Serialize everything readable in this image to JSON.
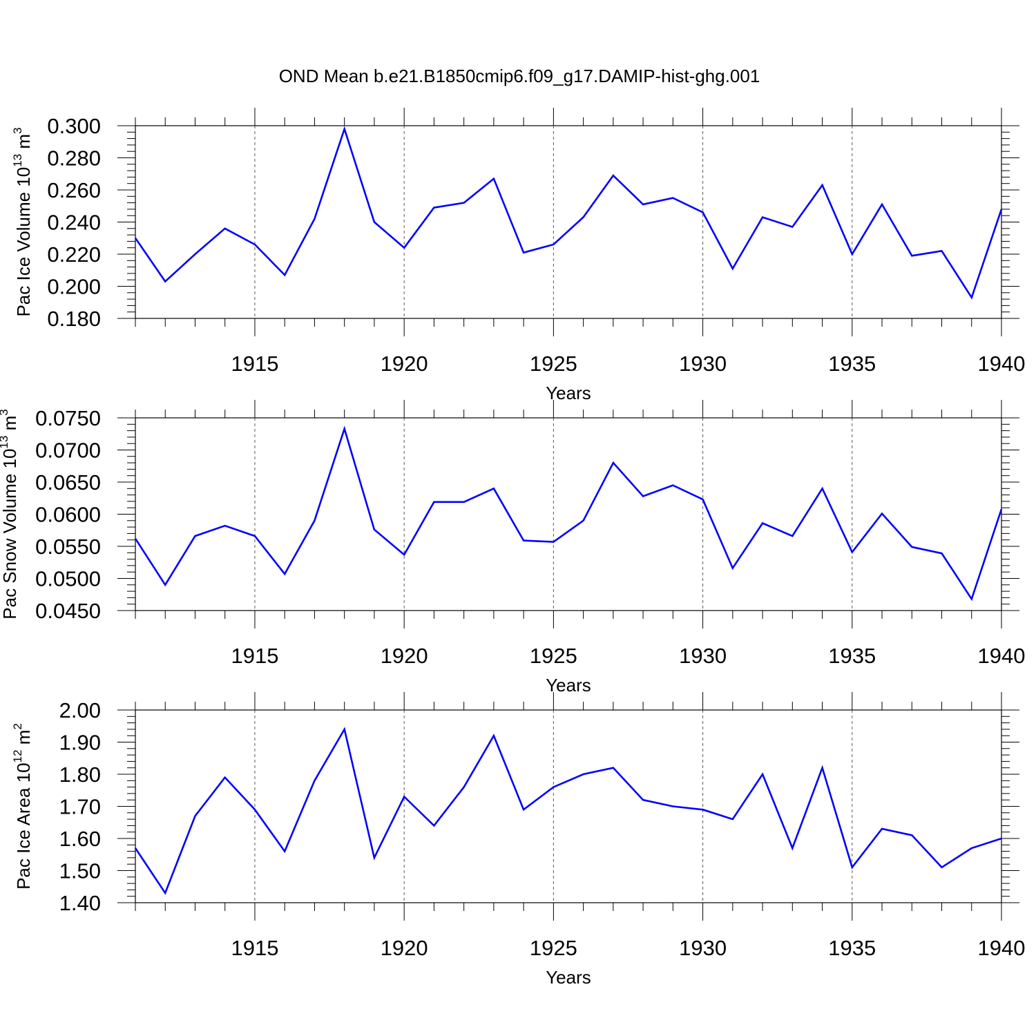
{
  "title": "OND Mean b.e21.B1850cmip6.f09_g17.DAMIP-hist-ghg.001",
  "line_color": "#0000ff",
  "chart_data": [
    {
      "type": "line",
      "ylabel": "Pac Ice Volume 10",
      "ylabel_exp": "13",
      "ylabel_unit": " m",
      "ylabel_unit_exp": "3",
      "xlabel": "Years",
      "xlim": [
        1911,
        1940
      ],
      "ylim": [
        0.18,
        0.3
      ],
      "yticks": [
        0.18,
        0.2,
        0.22,
        0.24,
        0.26,
        0.28,
        0.3
      ],
      "ytick_labels": [
        "0.180",
        "0.200",
        "0.220",
        "0.240",
        "0.260",
        "0.280",
        "0.300"
      ],
      "xticks": [
        1915,
        1920,
        1925,
        1930,
        1935,
        1940
      ],
      "xtick_labels": [
        "1915",
        "1920",
        "1925",
        "1930",
        "1935",
        "1940"
      ],
      "grid": "dashed vertical at major x ticks",
      "x": [
        1911,
        1912,
        1913,
        1914,
        1915,
        1916,
        1917,
        1918,
        1919,
        1920,
        1921,
        1922,
        1923,
        1924,
        1925,
        1926,
        1927,
        1928,
        1929,
        1930,
        1931,
        1932,
        1933,
        1934,
        1935,
        1936,
        1937,
        1938,
        1939,
        1940
      ],
      "values": [
        0.23,
        0.203,
        0.22,
        0.236,
        0.226,
        0.207,
        0.242,
        0.298,
        0.24,
        0.224,
        0.249,
        0.252,
        0.267,
        0.221,
        0.226,
        0.243,
        0.269,
        0.251,
        0.255,
        0.246,
        0.211,
        0.243,
        0.237,
        0.263,
        0.22,
        0.251,
        0.219,
        0.222,
        0.193,
        0.248
      ]
    },
    {
      "type": "line",
      "ylabel": "Pac Snow Volume 10",
      "ylabel_exp": "13",
      "ylabel_unit": " m",
      "ylabel_unit_exp": "3",
      "xlabel": "Years",
      "xlim": [
        1911,
        1940
      ],
      "ylim": [
        0.045,
        0.075
      ],
      "yticks": [
        0.045,
        0.05,
        0.055,
        0.06,
        0.065,
        0.07,
        0.075
      ],
      "ytick_labels": [
        "0.0450",
        "0.0500",
        "0.0550",
        "0.0600",
        "0.0650",
        "0.0700",
        "0.0750"
      ],
      "xticks": [
        1915,
        1920,
        1925,
        1930,
        1935,
        1940
      ],
      "xtick_labels": [
        "1915",
        "1920",
        "1925",
        "1930",
        "1935",
        "1940"
      ],
      "grid": "dashed vertical at major x ticks",
      "x": [
        1911,
        1912,
        1913,
        1914,
        1915,
        1916,
        1917,
        1918,
        1919,
        1920,
        1921,
        1922,
        1923,
        1924,
        1925,
        1926,
        1927,
        1928,
        1929,
        1930,
        1931,
        1932,
        1933,
        1934,
        1935,
        1936,
        1937,
        1938,
        1939,
        1940
      ],
      "values": [
        0.0562,
        0.049,
        0.0566,
        0.0582,
        0.0566,
        0.0507,
        0.059,
        0.0733,
        0.0576,
        0.0537,
        0.0619,
        0.0619,
        0.064,
        0.0559,
        0.0557,
        0.059,
        0.068,
        0.0628,
        0.0645,
        0.0623,
        0.0516,
        0.0586,
        0.0566,
        0.064,
        0.0541,
        0.0601,
        0.0549,
        0.0539,
        0.0468,
        0.0608
      ]
    },
    {
      "type": "line",
      "ylabel": "Pac Ice Area 10",
      "ylabel_exp": "12",
      "ylabel_unit": " m",
      "ylabel_unit_exp": "2",
      "xlabel": "Years",
      "xlim": [
        1911,
        1940
      ],
      "ylim": [
        1.4,
        2.0
      ],
      "yticks": [
        1.4,
        1.5,
        1.6,
        1.7,
        1.8,
        1.9,
        2.0
      ],
      "ytick_labels": [
        "1.40",
        "1.50",
        "1.60",
        "1.70",
        "1.80",
        "1.90",
        "2.00"
      ],
      "xticks": [
        1915,
        1920,
        1925,
        1930,
        1935,
        1940
      ],
      "xtick_labels": [
        "1915",
        "1920",
        "1925",
        "1930",
        "1935",
        "1940"
      ],
      "grid": "dashed vertical at major x ticks",
      "x": [
        1911,
        1912,
        1913,
        1914,
        1915,
        1916,
        1917,
        1918,
        1919,
        1920,
        1921,
        1922,
        1923,
        1924,
        1925,
        1926,
        1927,
        1928,
        1929,
        1930,
        1931,
        1932,
        1933,
        1934,
        1935,
        1936,
        1937,
        1938,
        1939,
        1940
      ],
      "values": [
        1.57,
        1.43,
        1.67,
        1.79,
        1.69,
        1.56,
        1.78,
        1.94,
        1.54,
        1.73,
        1.64,
        1.76,
        1.92,
        1.69,
        1.76,
        1.8,
        1.82,
        1.72,
        1.7,
        1.69,
        1.66,
        1.8,
        1.57,
        1.82,
        1.51,
        1.63,
        1.61,
        1.51,
        1.57,
        1.6
      ]
    }
  ]
}
